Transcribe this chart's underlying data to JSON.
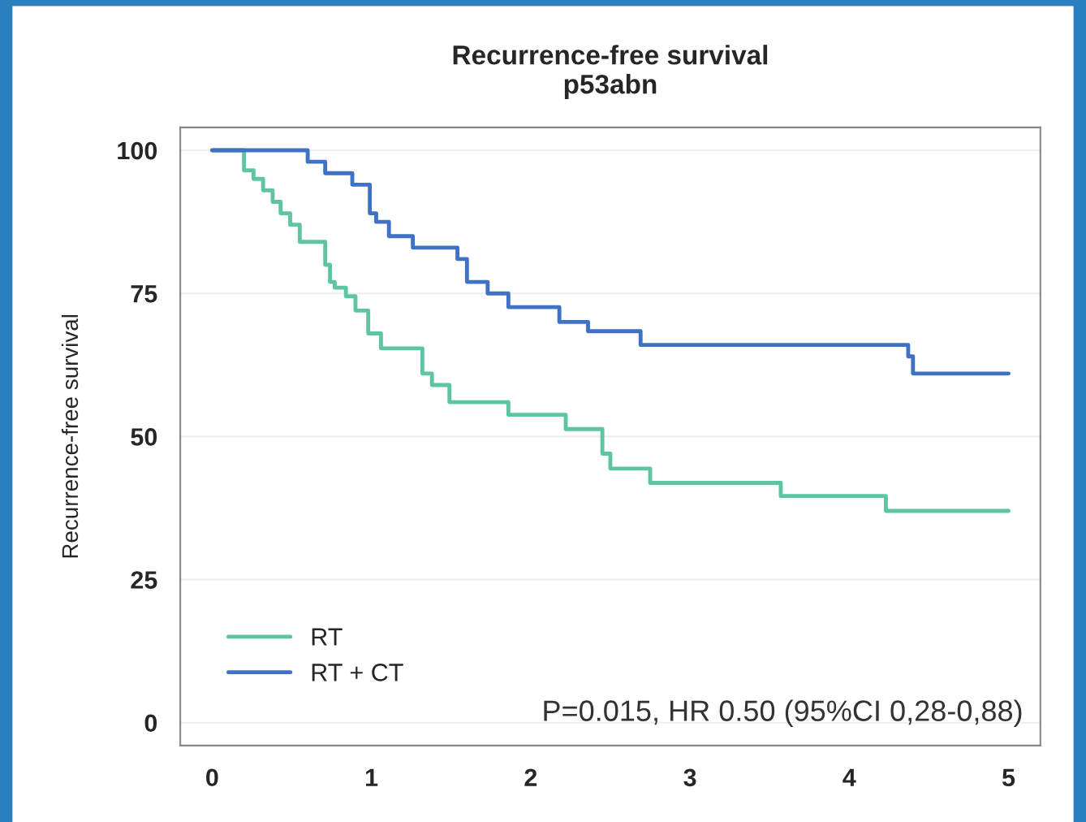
{
  "chart_data": {
    "type": "step",
    "title": "Recurrence-free survival\np53abn",
    "ylabel": "Recurrence-free survival",
    "xlim": [
      -0.2,
      5.2
    ],
    "ylim": [
      -4,
      104
    ],
    "xticks": [
      0,
      1,
      2,
      3,
      4,
      5
    ],
    "yticks": [
      0,
      25,
      50,
      75,
      100
    ],
    "grid": "y",
    "legend": "bottom left",
    "line_style": "solid",
    "annotations": [
      "P=0.015, HR 0.50 (95%CI 0,28-0,88)"
    ],
    "series": [
      {
        "name": "RT",
        "color": "#5fc4a0",
        "x": [
          0,
          0.2,
          0.26,
          0.32,
          0.38,
          0.43,
          0.49,
          0.55,
          0.71,
          0.74,
          0.77,
          0.84,
          0.9,
          0.98,
          1.06,
          1.32,
          1.38,
          1.49,
          1.86,
          2.22,
          2.45,
          2.5,
          2.75,
          3.57,
          4.23,
          5.0
        ],
        "values": [
          100,
          96.5,
          95,
          93,
          91,
          89,
          87,
          84,
          80,
          77,
          76,
          74.5,
          72,
          68,
          65.4,
          61,
          59,
          56,
          53.8,
          51.3,
          47,
          44.4,
          41.9,
          39.6,
          37,
          37
        ]
      },
      {
        "name": "RT + CT",
        "color": "#3f72c4",
        "x": [
          0,
          0.6,
          0.71,
          0.88,
          0.99,
          1.03,
          1.11,
          1.26,
          1.54,
          1.6,
          1.73,
          1.86,
          2.18,
          2.36,
          2.69,
          4.37,
          4.4,
          5.0
        ],
        "values": [
          100,
          98,
          96,
          94,
          89,
          87.5,
          85,
          83,
          81,
          77,
          75,
          72.6,
          70,
          68.4,
          66,
          64,
          61,
          61
        ]
      }
    ]
  }
}
